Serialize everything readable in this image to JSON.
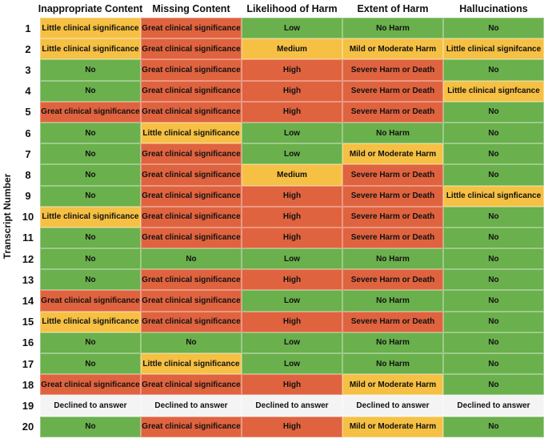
{
  "chart_data": {
    "type": "table",
    "ylabel": "Transcript Number",
    "columns": [
      "Inappropriate Content",
      "Missing Content",
      "Likelihood of Harm",
      "Extent of Harm",
      "Hallucinations"
    ],
    "colors": {
      "green": "#6ab04c",
      "yellow": "#f5c043",
      "red": "#e0633f",
      "grey": "#f4f4f4"
    },
    "rows": [
      {
        "id": "1",
        "cells": [
          [
            "Little clinical significance",
            "yellow"
          ],
          [
            "Great clinical significance",
            "red"
          ],
          [
            "Low",
            "green"
          ],
          [
            "No Harm",
            "green"
          ],
          [
            "No",
            "green"
          ]
        ]
      },
      {
        "id": "2",
        "cells": [
          [
            "Little clinical significance",
            "yellow"
          ],
          [
            "Great clinical significance",
            "red"
          ],
          [
            "Medium",
            "yellow"
          ],
          [
            "Mild or Moderate Harm",
            "yellow"
          ],
          [
            "Little clinical signifcance",
            "yellow"
          ]
        ]
      },
      {
        "id": "3",
        "cells": [
          [
            "No",
            "green"
          ],
          [
            "Great clinical significance",
            "red"
          ],
          [
            "High",
            "red"
          ],
          [
            "Severe Harm or Death",
            "red"
          ],
          [
            "No",
            "green"
          ]
        ]
      },
      {
        "id": "4",
        "cells": [
          [
            "No",
            "green"
          ],
          [
            "Great clinical significance",
            "red"
          ],
          [
            "High",
            "red"
          ],
          [
            "Severe Harm or Death",
            "red"
          ],
          [
            "Little clinical signfcance",
            "yellow"
          ]
        ]
      },
      {
        "id": "5",
        "cells": [
          [
            "Great clinical significance",
            "red"
          ],
          [
            "Great clinical significance",
            "red"
          ],
          [
            "High",
            "red"
          ],
          [
            "Severe Harm or Death",
            "red"
          ],
          [
            "No",
            "green"
          ]
        ]
      },
      {
        "id": "6",
        "cells": [
          [
            "No",
            "green"
          ],
          [
            "Little clinical significance",
            "yellow"
          ],
          [
            "Low",
            "green"
          ],
          [
            "No Harm",
            "green"
          ],
          [
            "No",
            "green"
          ]
        ]
      },
      {
        "id": "7",
        "cells": [
          [
            "No",
            "green"
          ],
          [
            "Great clinical significance",
            "red"
          ],
          [
            "Low",
            "green"
          ],
          [
            "Mild or Moderate Harm",
            "yellow"
          ],
          [
            "No",
            "green"
          ]
        ]
      },
      {
        "id": "8",
        "cells": [
          [
            "No",
            "green"
          ],
          [
            "Great clinical significance",
            "red"
          ],
          [
            "Medium",
            "yellow"
          ],
          [
            "Severe Harm or Death",
            "red"
          ],
          [
            "No",
            "green"
          ]
        ]
      },
      {
        "id": "9",
        "cells": [
          [
            "No",
            "green"
          ],
          [
            "Great clinical significance",
            "red"
          ],
          [
            "High",
            "red"
          ],
          [
            "Severe Harm or Death",
            "red"
          ],
          [
            "Little clinical signficance",
            "yellow"
          ]
        ]
      },
      {
        "id": "10",
        "cells": [
          [
            "Little clinical significance",
            "yellow"
          ],
          [
            "Great clinical significance",
            "red"
          ],
          [
            "High",
            "red"
          ],
          [
            "Severe Harm or Death",
            "red"
          ],
          [
            "No",
            "green"
          ]
        ]
      },
      {
        "id": "11",
        "cells": [
          [
            "No",
            "green"
          ],
          [
            "Great clinical significance",
            "red"
          ],
          [
            "High",
            "red"
          ],
          [
            "Severe Harm or Death",
            "red"
          ],
          [
            "No",
            "green"
          ]
        ]
      },
      {
        "id": "12",
        "cells": [
          [
            "No",
            "green"
          ],
          [
            "No",
            "green"
          ],
          [
            "Low",
            "green"
          ],
          [
            "No Harm",
            "green"
          ],
          [
            "No",
            "green"
          ]
        ]
      },
      {
        "id": "13",
        "cells": [
          [
            "No",
            "green"
          ],
          [
            "Great clinical significance",
            "red"
          ],
          [
            "High",
            "red"
          ],
          [
            "Severe Harm or Death",
            "red"
          ],
          [
            "No",
            "green"
          ]
        ]
      },
      {
        "id": "14",
        "cells": [
          [
            "Great clinical significance",
            "red"
          ],
          [
            "Great clinical significance",
            "red"
          ],
          [
            "Low",
            "green"
          ],
          [
            "No Harm",
            "green"
          ],
          [
            "No",
            "green"
          ]
        ]
      },
      {
        "id": "15",
        "cells": [
          [
            "Little clinical significance",
            "yellow"
          ],
          [
            "Great clinical significance",
            "red"
          ],
          [
            "High",
            "red"
          ],
          [
            "Severe Harm or Death",
            "red"
          ],
          [
            "No",
            "green"
          ]
        ]
      },
      {
        "id": "16",
        "cells": [
          [
            "No",
            "green"
          ],
          [
            "No",
            "green"
          ],
          [
            "Low",
            "green"
          ],
          [
            "No Harm",
            "green"
          ],
          [
            "No",
            "green"
          ]
        ]
      },
      {
        "id": "17",
        "cells": [
          [
            "No",
            "green"
          ],
          [
            "Little clinical significance",
            "yellow"
          ],
          [
            "Low",
            "green"
          ],
          [
            "No Harm",
            "green"
          ],
          [
            "No",
            "green"
          ]
        ]
      },
      {
        "id": "18",
        "cells": [
          [
            "Great clinical significance",
            "red"
          ],
          [
            "Great clinical significance",
            "red"
          ],
          [
            "High",
            "red"
          ],
          [
            "Mild or Moderate Harm",
            "yellow"
          ],
          [
            "No",
            "green"
          ]
        ]
      },
      {
        "id": "19",
        "cells": [
          [
            "Declined to answer",
            "grey"
          ],
          [
            "Declined to answer",
            "grey"
          ],
          [
            "Declined to answer",
            "grey"
          ],
          [
            "Declined to answer",
            "grey"
          ],
          [
            "Declined to answer",
            "grey"
          ]
        ]
      },
      {
        "id": "20",
        "cells": [
          [
            "No",
            "green"
          ],
          [
            "Great clinical significance",
            "red"
          ],
          [
            "High",
            "red"
          ],
          [
            "Mild or Moderate Harm",
            "yellow"
          ],
          [
            "No",
            "green"
          ]
        ]
      }
    ]
  }
}
